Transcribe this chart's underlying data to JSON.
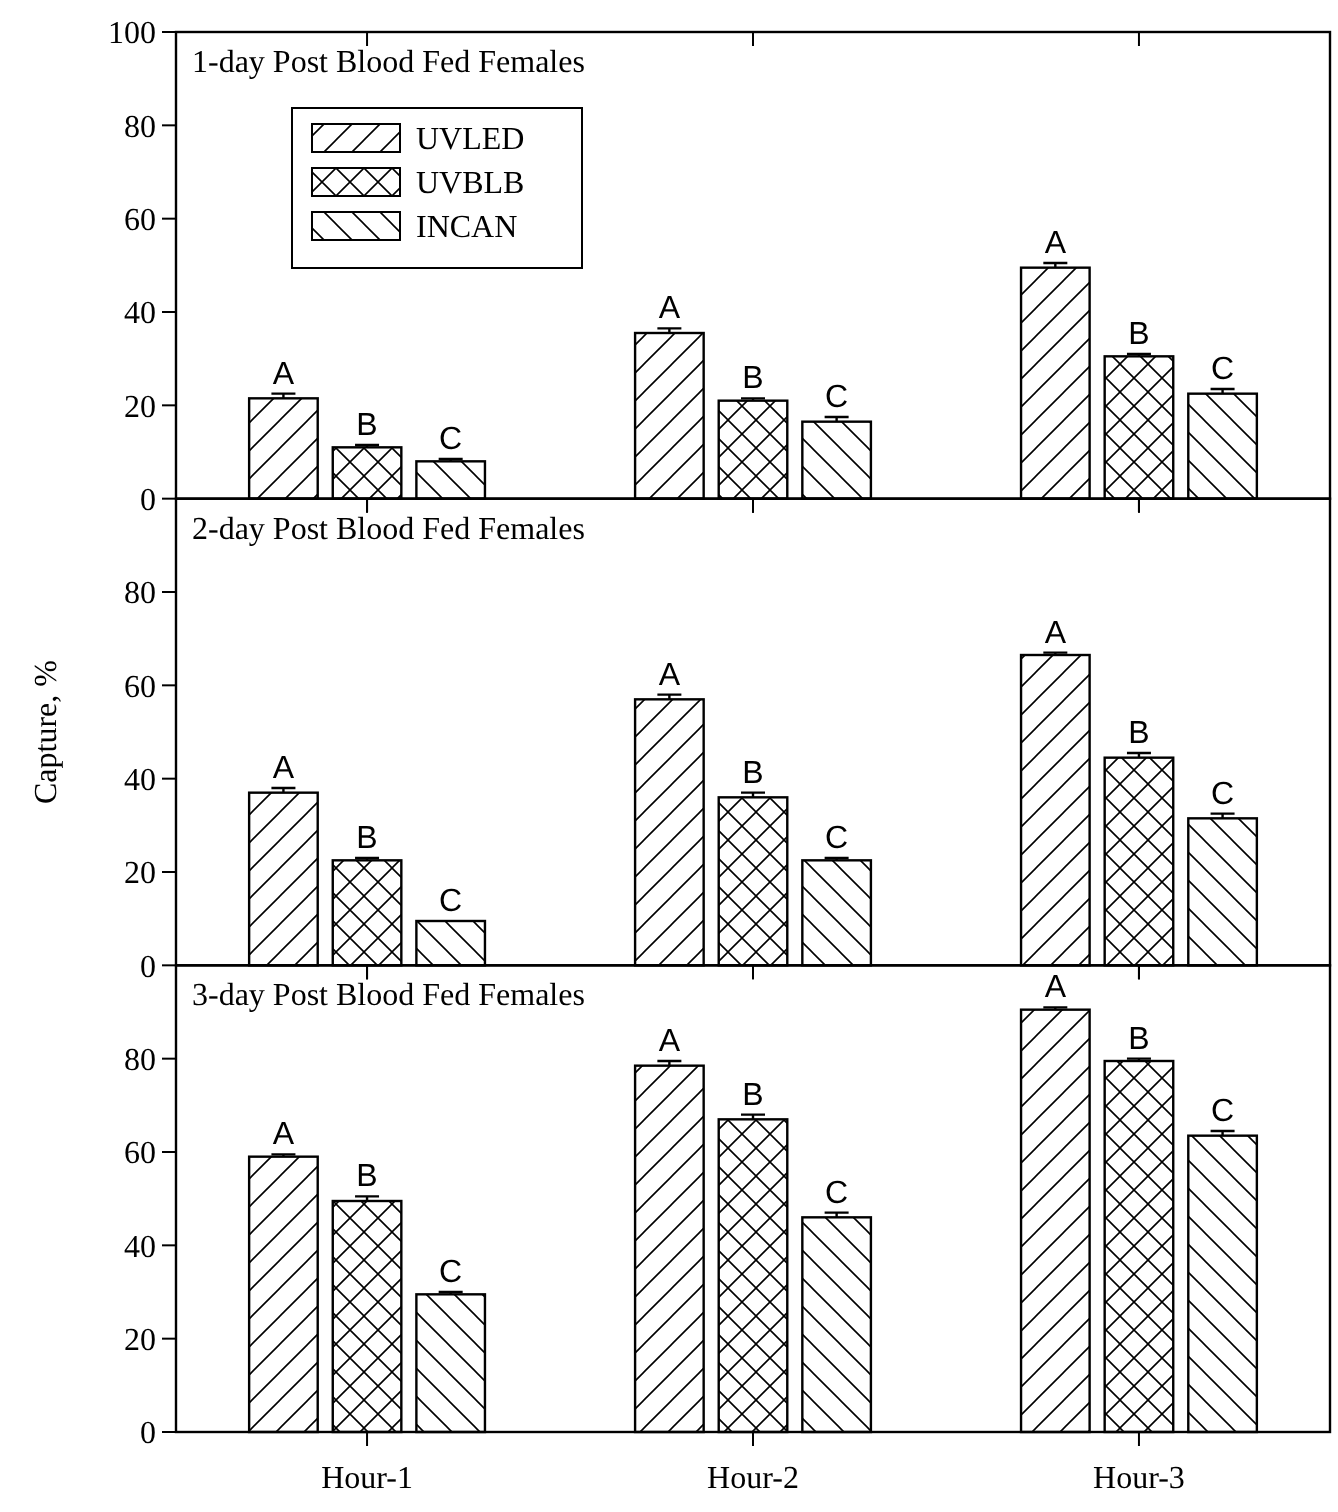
{
  "chart_data": [
    {
      "type": "bar",
      "title": "1-day Post Blood Fed Females",
      "categories": [
        null,
        null,
        null
      ],
      "ylim": [
        0,
        100
      ],
      "yticks": [
        0,
        20,
        40,
        60,
        80,
        100
      ],
      "tick_labels": "y",
      "legend": "top left",
      "grid": false,
      "series": [
        {
          "name": "UVLED",
          "color": "#ffffff",
          "values": [
            21.5,
            35.5,
            49.5
          ],
          "errors": [
            1,
            1,
            1
          ],
          "value_labels": [
            "A",
            "A",
            "A"
          ]
        },
        {
          "name": "UVBLB",
          "color": "#ffffff",
          "values": [
            11,
            21,
            30.5
          ],
          "errors": [
            0.5,
            0.5,
            0.5
          ],
          "value_labels": [
            "B",
            "B",
            "B"
          ]
        },
        {
          "name": "INCAN",
          "color": "#ffffff",
          "values": [
            8,
            16.5,
            22.5
          ],
          "errors": [
            0.5,
            1,
            1
          ],
          "value_labels": [
            "C",
            "C",
            "C"
          ]
        }
      ]
    },
    {
      "type": "bar",
      "title": "2-day Post Blood Fed Females",
      "ylabel": "Capture, %",
      "categories": [
        null,
        null,
        null
      ],
      "ylim": [
        0,
        100
      ],
      "yticks": [
        0,
        20,
        40,
        60,
        80
      ],
      "tick_labels": "y",
      "grid": false,
      "series": [
        {
          "color": "#ffffff",
          "values": [
            37,
            57,
            66.5
          ],
          "errors": [
            1,
            1,
            0.5
          ],
          "value_labels": [
            "A",
            "A",
            "A"
          ]
        },
        {
          "color": "#ffffff",
          "values": [
            22.5,
            36,
            44.5
          ],
          "errors": [
            0.5,
            1,
            1
          ],
          "value_labels": [
            "B",
            "B",
            "B"
          ]
        },
        {
          "color": "#ffffff",
          "values": [
            9.5,
            22.5,
            31.5
          ],
          "errors": [
            null,
            0.5,
            1
          ],
          "value_labels": [
            "C",
            "C",
            "C"
          ]
        }
      ]
    },
    {
      "type": "bar",
      "title": "3-day Post Blood Fed Females",
      "categories": [
        "Hour-1",
        "Hour-2",
        "Hour-3"
      ],
      "ylim": [
        0,
        100
      ],
      "yticks": [
        0,
        20,
        40,
        60,
        80
      ],
      "grid": false,
      "series": [
        {
          "color": "#ffffff",
          "values": [
            59,
            78.5,
            90.5
          ],
          "errors": [
            0.5,
            1,
            0.5
          ],
          "value_labels": [
            "A",
            "A",
            "A"
          ]
        },
        {
          "color": "#ffffff",
          "values": [
            49.5,
            67,
            79.5
          ],
          "errors": [
            1,
            1,
            0.5
          ],
          "value_labels": [
            "B",
            "B",
            "B"
          ]
        },
        {
          "color": "#ffffff",
          "values": [
            29.5,
            46,
            63.5
          ],
          "errors": [
            0.5,
            1,
            1
          ],
          "value_labels": [
            "C",
            "C",
            "C"
          ]
        }
      ]
    }
  ]
}
